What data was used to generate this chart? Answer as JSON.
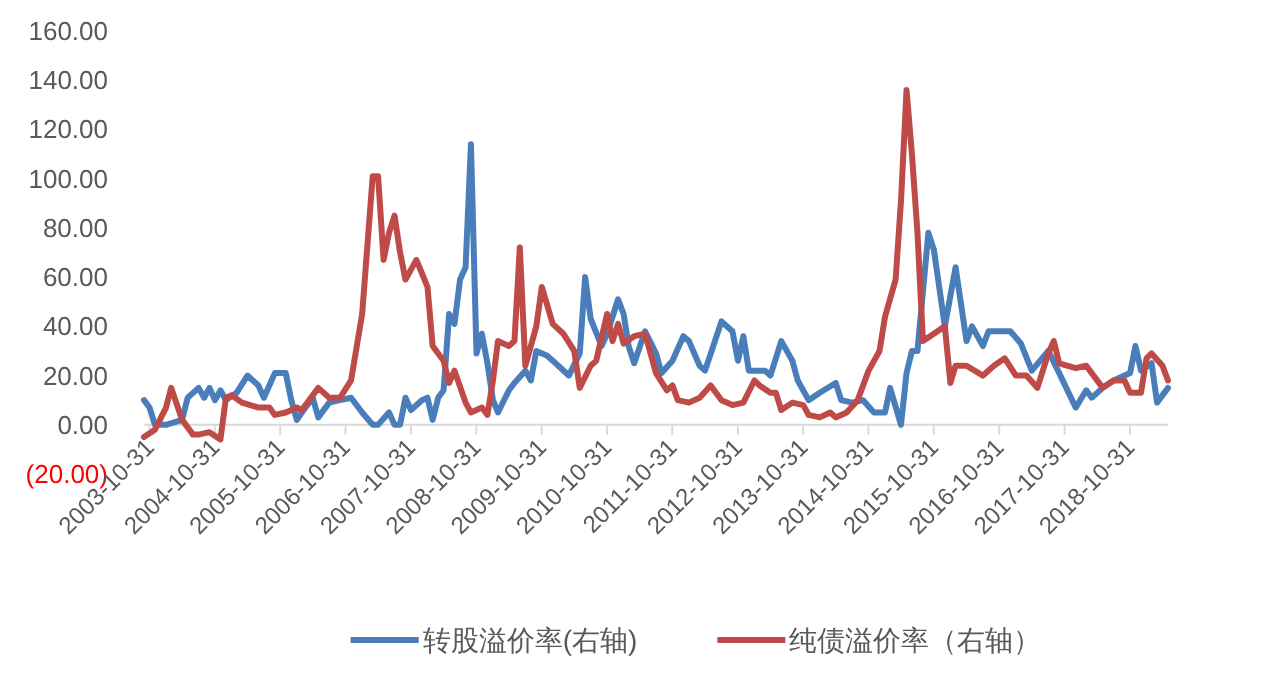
{
  "chart_data": {
    "type": "line",
    "ylim": [
      -20,
      160
    ],
    "yticks": [
      {
        "value": -20,
        "label": "(20.00)"
      },
      {
        "value": 0,
        "label": "0.00"
      },
      {
        "value": 20,
        "label": "20.00"
      },
      {
        "value": 40,
        "label": "40.00"
      },
      {
        "value": 60,
        "label": "60.00"
      },
      {
        "value": 80,
        "label": "80.00"
      },
      {
        "value": 100,
        "label": "100.00"
      },
      {
        "value": 120,
        "label": "120.00"
      },
      {
        "value": 140,
        "label": "140.00"
      },
      {
        "value": 160,
        "label": "160.00"
      }
    ],
    "xlim": [
      "2003-10",
      "2019-06"
    ],
    "xticks": [
      "2003-10-31",
      "2004-10-31",
      "2005-10-31",
      "2006-10-31",
      "2007-10-31",
      "2008-10-31",
      "2009-10-31",
      "2010-10-31",
      "2011-10-31",
      "2012-10-31",
      "2013-10-31",
      "2014-10-31",
      "2015-10-31",
      "2016-10-31",
      "2017-10-31",
      "2018-10-31"
    ],
    "grid": false,
    "legend": "bottom",
    "series": [
      {
        "name": "转股溢价率(右轴)",
        "color": "#4a7ebb",
        "x": [
          "2003-10",
          "2003-11",
          "2003-12",
          "2004-02",
          "2004-05",
          "2004-06",
          "2004-08",
          "2004-09",
          "2004-10",
          "2004-11",
          "2004-12",
          "2005-01",
          "2005-03",
          "2005-05",
          "2005-07",
          "2005-08",
          "2005-10",
          "2005-12",
          "2006-01",
          "2006-02",
          "2006-03",
          "2006-05",
          "2006-06",
          "2006-08",
          "2006-10",
          "2006-12",
          "2007-02",
          "2007-04",
          "2007-05",
          "2007-07",
          "2007-08",
          "2007-09",
          "2007-10",
          "2007-11",
          "2008-01",
          "2008-02",
          "2008-03",
          "2008-04",
          "2008-05",
          "2008-06",
          "2008-07",
          "2008-08",
          "2008-09",
          "2008-10",
          "2008-11",
          "2008-12",
          "2009-01",
          "2009-02",
          "2009-03",
          "2009-05",
          "2009-06",
          "2009-08",
          "2009-09",
          "2009-10",
          "2009-12",
          "2010-02",
          "2010-04",
          "2010-06",
          "2010-07",
          "2010-08",
          "2010-10",
          "2010-11",
          "2011-01",
          "2011-02",
          "2011-03",
          "2011-04",
          "2011-06",
          "2011-08",
          "2011-09",
          "2011-11",
          "2012-01",
          "2012-02",
          "2012-04",
          "2012-05",
          "2012-08",
          "2012-10",
          "2012-11",
          "2012-12",
          "2013-01",
          "2013-04",
          "2013-05",
          "2013-07",
          "2013-09",
          "2013-10",
          "2013-12",
          "2014-02",
          "2014-05",
          "2014-06",
          "2014-08",
          "2014-10",
          "2014-12",
          "2015-02",
          "2015-03",
          "2015-05",
          "2015-06",
          "2015-07",
          "2015-08",
          "2015-10",
          "2015-11",
          "2016-01",
          "2016-03",
          "2016-05",
          "2016-06",
          "2016-08",
          "2016-09",
          "2016-11",
          "2017-01",
          "2017-03",
          "2017-05",
          "2017-08",
          "2017-10",
          "2018-01",
          "2018-03",
          "2018-04",
          "2018-06",
          "2018-08",
          "2018-11",
          "2018-12",
          "2019-01",
          "2019-03",
          "2019-04",
          "2019-06"
        ],
        "values": [
          10,
          7,
          0,
          0,
          2,
          11,
          15,
          11,
          15,
          10,
          14,
          10,
          13,
          20,
          16,
          11,
          21,
          21,
          10,
          2,
          5,
          11,
          3,
          9,
          10,
          11,
          5,
          0,
          0,
          5,
          0,
          0,
          11,
          6,
          10,
          11,
          2,
          11,
          14,
          45,
          41,
          59,
          64,
          114,
          29,
          37,
          25,
          10,
          5,
          14,
          17,
          22,
          18,
          30,
          28,
          24,
          20,
          29,
          60,
          43,
          32,
          37,
          51,
          45,
          32,
          25,
          38,
          29,
          21,
          26,
          36,
          34,
          24,
          22,
          42,
          38,
          26,
          36,
          22,
          22,
          20,
          34,
          26,
          18,
          10,
          13,
          17,
          10,
          9,
          10,
          5,
          5,
          15,
          0,
          21,
          30,
          30,
          78,
          71,
          40,
          64,
          34,
          40,
          32,
          38,
          38,
          38,
          33,
          22,
          30,
          21,
          7,
          14,
          11,
          15,
          18,
          21,
          32,
          22,
          25,
          9,
          15
        ]
      },
      {
        "name": "纯债溢价率（右轴）",
        "color": "#be4b48",
        "x": [
          "2003-10",
          "2003-12",
          "2004-02",
          "2004-03",
          "2004-05",
          "2004-07",
          "2004-08",
          "2004-10",
          "2004-12",
          "2005-01",
          "2005-02",
          "2005-04",
          "2005-07",
          "2005-09",
          "2005-10",
          "2005-12",
          "2006-02",
          "2006-03",
          "2006-06",
          "2006-08",
          "2006-10",
          "2006-12",
          "2007-02",
          "2007-04",
          "2007-05",
          "2007-06",
          "2007-07",
          "2007-08",
          "2007-09",
          "2007-10",
          "2007-12",
          "2008-02",
          "2008-03",
          "2008-05",
          "2008-06",
          "2008-07",
          "2008-09",
          "2008-10",
          "2008-12",
          "2009-01",
          "2009-02",
          "2009-03",
          "2009-05",
          "2009-06",
          "2009-07",
          "2009-08",
          "2009-10",
          "2009-11",
          "2010-01",
          "2010-03",
          "2010-05",
          "2010-06",
          "2010-08",
          "2010-09",
          "2010-11",
          "2010-12",
          "2011-01",
          "2011-02",
          "2011-04",
          "2011-06",
          "2011-08",
          "2011-10",
          "2011-11",
          "2011-12",
          "2012-02",
          "2012-04",
          "2012-06",
          "2012-08",
          "2012-10",
          "2012-12",
          "2013-02",
          "2013-03",
          "2013-05",
          "2013-06",
          "2013-07",
          "2013-09",
          "2013-11",
          "2013-12",
          "2014-02",
          "2014-04",
          "2014-05",
          "2014-07",
          "2014-09",
          "2014-11",
          "2015-01",
          "2015-02",
          "2015-04",
          "2015-05",
          "2015-06",
          "2015-07",
          "2015-08",
          "2015-09",
          "2015-11",
          "2016-01",
          "2016-02",
          "2016-03",
          "2016-05",
          "2016-08",
          "2016-10",
          "2016-12",
          "2017-02",
          "2017-04",
          "2017-06",
          "2017-08",
          "2017-09",
          "2017-10",
          "2018-01",
          "2018-03",
          "2018-04",
          "2018-06",
          "2018-08",
          "2018-10",
          "2018-11",
          "2019-01",
          "2019-02",
          "2019-03",
          "2019-05",
          "2019-06"
        ],
        "values": [
          -5,
          -2,
          7,
          15,
          2,
          -4,
          -4,
          -3,
          -6,
          11,
          12,
          9,
          7,
          7,
          4,
          5,
          7,
          6,
          15,
          11,
          11,
          18,
          45,
          101,
          101,
          67,
          78,
          85,
          70,
          59,
          67,
          56,
          32,
          26,
          17,
          22,
          9,
          5,
          7,
          4,
          18,
          34,
          32,
          34,
          72,
          24,
          40,
          56,
          41,
          37,
          30,
          15,
          24,
          26,
          45,
          34,
          41,
          33,
          36,
          37,
          21,
          14,
          16,
          10,
          9,
          11,
          16,
          10,
          8,
          9,
          18,
          16,
          13,
          13,
          6,
          9,
          8,
          4,
          3,
          5,
          3,
          5,
          10,
          22,
          30,
          44,
          59,
          91,
          136,
          110,
          78,
          34,
          37,
          40,
          17,
          24,
          24,
          20,
          24,
          27,
          20,
          20,
          15,
          29,
          34,
          25,
          23,
          24,
          21,
          15,
          18,
          18,
          13,
          13,
          27,
          29,
          24,
          18
        ]
      }
    ]
  }
}
